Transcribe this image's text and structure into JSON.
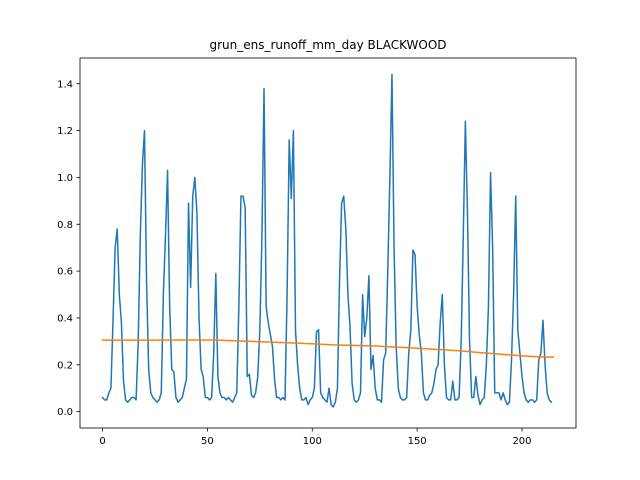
{
  "chart_data": {
    "type": "line",
    "title": "grun_ens_runoff_mm_day BLACKWOOD",
    "xlabel": "",
    "ylabel": "",
    "xlim": [
      -10.75,
      225.75
    ],
    "ylim": [
      -0.07,
      1.51
    ],
    "grid": false,
    "xticks": [
      0,
      50,
      100,
      150,
      200
    ],
    "xtick_labels": [
      "0",
      "50",
      "100",
      "150",
      "200"
    ],
    "yticks": [
      0.0,
      0.2,
      0.4,
      0.6,
      0.8,
      1.0,
      1.2,
      1.4
    ],
    "ytick_labels": [
      "0.0",
      "0.2",
      "0.4",
      "0.6",
      "0.8",
      "1.0",
      "1.2",
      "1.4"
    ],
    "series": [
      {
        "color": "#1f77b4",
        "points": [
          [
            0,
            0.06
          ],
          [
            1,
            0.05
          ],
          [
            2,
            0.05
          ],
          [
            3,
            0.08
          ],
          [
            4,
            0.1
          ],
          [
            5,
            0.39
          ],
          [
            6,
            0.7
          ],
          [
            7,
            0.78
          ],
          [
            8,
            0.5
          ],
          [
            9,
            0.38
          ],
          [
            10,
            0.13
          ],
          [
            11,
            0.05
          ],
          [
            12,
            0.04
          ],
          [
            13,
            0.05
          ],
          [
            14,
            0.06
          ],
          [
            15,
            0.06
          ],
          [
            16,
            0.05
          ],
          [
            17,
            0.3
          ],
          [
            18,
            0.75
          ],
          [
            19,
            1.05
          ],
          [
            20,
            1.2
          ],
          [
            21,
            0.55
          ],
          [
            22,
            0.18
          ],
          [
            23,
            0.08
          ],
          [
            24,
            0.06
          ],
          [
            25,
            0.05
          ],
          [
            26,
            0.04
          ],
          [
            27,
            0.05
          ],
          [
            28,
            0.08
          ],
          [
            29,
            0.5
          ],
          [
            30,
            0.75
          ],
          [
            31,
            1.03
          ],
          [
            32,
            0.45
          ],
          [
            33,
            0.18
          ],
          [
            34,
            0.17
          ],
          [
            35,
            0.06
          ],
          [
            36,
            0.04
          ],
          [
            37,
            0.05
          ],
          [
            38,
            0.06
          ],
          [
            39,
            0.1
          ],
          [
            40,
            0.14
          ],
          [
            41,
            0.89
          ],
          [
            42,
            0.53
          ],
          [
            43,
            0.92
          ],
          [
            44,
            1.0
          ],
          [
            45,
            0.85
          ],
          [
            46,
            0.4
          ],
          [
            47,
            0.18
          ],
          [
            48,
            0.15
          ],
          [
            49,
            0.06
          ],
          [
            50,
            0.06
          ],
          [
            51,
            0.05
          ],
          [
            52,
            0.06
          ],
          [
            53,
            0.25
          ],
          [
            54,
            0.59
          ],
          [
            55,
            0.15
          ],
          [
            56,
            0.08
          ],
          [
            57,
            0.06
          ],
          [
            58,
            0.06
          ],
          [
            59,
            0.05
          ],
          [
            60,
            0.06
          ],
          [
            61,
            0.05
          ],
          [
            62,
            0.04
          ],
          [
            63,
            0.06
          ],
          [
            64,
            0.08
          ],
          [
            65,
            0.45
          ],
          [
            66,
            0.92
          ],
          [
            67,
            0.92
          ],
          [
            68,
            0.87
          ],
          [
            69,
            0.15
          ],
          [
            70,
            0.16
          ],
          [
            71,
            0.07
          ],
          [
            72,
            0.06
          ],
          [
            73,
            0.08
          ],
          [
            74,
            0.15
          ],
          [
            75,
            0.35
          ],
          [
            76,
            0.75
          ],
          [
            77,
            1.38
          ],
          [
            78,
            0.45
          ],
          [
            79,
            0.38
          ],
          [
            80,
            0.33
          ],
          [
            81,
            0.28
          ],
          [
            82,
            0.14
          ],
          [
            83,
            0.06
          ],
          [
            84,
            0.06
          ],
          [
            85,
            0.05
          ],
          [
            86,
            0.06
          ],
          [
            87,
            0.05
          ],
          [
            88,
            0.5
          ],
          [
            89,
            1.16
          ],
          [
            90,
            0.91
          ],
          [
            91,
            1.2
          ],
          [
            92,
            0.35
          ],
          [
            93,
            0.2
          ],
          [
            94,
            0.1
          ],
          [
            95,
            0.05
          ],
          [
            96,
            0.05
          ],
          [
            97,
            0.06
          ],
          [
            98,
            0.03
          ],
          [
            99,
            0.05
          ],
          [
            100,
            0.06
          ],
          [
            101,
            0.1
          ],
          [
            102,
            0.34
          ],
          [
            103,
            0.35
          ],
          [
            104,
            0.08
          ],
          [
            105,
            0.06
          ],
          [
            106,
            0.05
          ],
          [
            107,
            0.04
          ],
          [
            108,
            0.1
          ],
          [
            109,
            0.03
          ],
          [
            110,
            0.02
          ],
          [
            111,
            0.04
          ],
          [
            112,
            0.1
          ],
          [
            113,
            0.56
          ],
          [
            114,
            0.89
          ],
          [
            115,
            0.92
          ],
          [
            116,
            0.78
          ],
          [
            117,
            0.5
          ],
          [
            118,
            0.36
          ],
          [
            119,
            0.12
          ],
          [
            120,
            0.05
          ],
          [
            121,
            0.04
          ],
          [
            122,
            0.05
          ],
          [
            123,
            0.08
          ],
          [
            124,
            0.5
          ],
          [
            125,
            0.32
          ],
          [
            126,
            0.4
          ],
          [
            127,
            0.58
          ],
          [
            128,
            0.18
          ],
          [
            129,
            0.24
          ],
          [
            130,
            0.1
          ],
          [
            131,
            0.05
          ],
          [
            132,
            0.05
          ],
          [
            133,
            0.04
          ],
          [
            134,
            0.22
          ],
          [
            135,
            0.25
          ],
          [
            136,
            0.6
          ],
          [
            137,
            1.0
          ],
          [
            138,
            1.44
          ],
          [
            139,
            0.7
          ],
          [
            140,
            0.28
          ],
          [
            141,
            0.1
          ],
          [
            142,
            0.06
          ],
          [
            143,
            0.05
          ],
          [
            144,
            0.05
          ],
          [
            145,
            0.06
          ],
          [
            146,
            0.25
          ],
          [
            147,
            0.35
          ],
          [
            148,
            0.69
          ],
          [
            149,
            0.67
          ],
          [
            150,
            0.45
          ],
          [
            151,
            0.33
          ],
          [
            152,
            0.25
          ],
          [
            153,
            0.08
          ],
          [
            154,
            0.05
          ],
          [
            155,
            0.05
          ],
          [
            156,
            0.07
          ],
          [
            157,
            0.08
          ],
          [
            158,
            0.12
          ],
          [
            159,
            0.18
          ],
          [
            160,
            0.2
          ],
          [
            161,
            0.38
          ],
          [
            162,
            0.5
          ],
          [
            163,
            0.2
          ],
          [
            164,
            0.06
          ],
          [
            165,
            0.05
          ],
          [
            166,
            0.05
          ],
          [
            167,
            0.13
          ],
          [
            168,
            0.05
          ],
          [
            169,
            0.05
          ],
          [
            170,
            0.06
          ],
          [
            171,
            0.3
          ],
          [
            172,
            0.75
          ],
          [
            173,
            1.24
          ],
          [
            174,
            0.85
          ],
          [
            175,
            0.3
          ],
          [
            176,
            0.06
          ],
          [
            177,
            0.06
          ],
          [
            178,
            0.15
          ],
          [
            179,
            0.07
          ],
          [
            180,
            0.03
          ],
          [
            181,
            0.05
          ],
          [
            182,
            0.06
          ],
          [
            183,
            0.2
          ],
          [
            184,
            0.45
          ],
          [
            185,
            1.02
          ],
          [
            186,
            0.7
          ],
          [
            187,
            0.08
          ],
          [
            188,
            0.08
          ],
          [
            189,
            0.08
          ],
          [
            190,
            0.05
          ],
          [
            191,
            0.08
          ],
          [
            192,
            0.05
          ],
          [
            193,
            0.03
          ],
          [
            194,
            0.04
          ],
          [
            195,
            0.22
          ],
          [
            196,
            0.5
          ],
          [
            197,
            0.92
          ],
          [
            198,
            0.35
          ],
          [
            199,
            0.25
          ],
          [
            200,
            0.15
          ],
          [
            201,
            0.08
          ],
          [
            202,
            0.05
          ],
          [
            203,
            0.04
          ],
          [
            204,
            0.05
          ],
          [
            205,
            0.05
          ],
          [
            206,
            0.04
          ],
          [
            207,
            0.05
          ],
          [
            208,
            0.22
          ],
          [
            209,
            0.25
          ],
          [
            210,
            0.39
          ],
          [
            211,
            0.2
          ],
          [
            212,
            0.08
          ],
          [
            213,
            0.05
          ],
          [
            214,
            0.04
          ]
        ]
      },
      {
        "color": "#ff7f0e",
        "points": [
          [
            0,
            0.305
          ],
          [
            20,
            0.305
          ],
          [
            40,
            0.306
          ],
          [
            55,
            0.305
          ],
          [
            70,
            0.3
          ],
          [
            85,
            0.295
          ],
          [
            100,
            0.29
          ],
          [
            110,
            0.285
          ],
          [
            130,
            0.28
          ],
          [
            145,
            0.273
          ],
          [
            160,
            0.265
          ],
          [
            170,
            0.26
          ],
          [
            180,
            0.252
          ],
          [
            190,
            0.245
          ],
          [
            200,
            0.238
          ],
          [
            210,
            0.233
          ],
          [
            215,
            0.232
          ]
        ]
      }
    ]
  }
}
